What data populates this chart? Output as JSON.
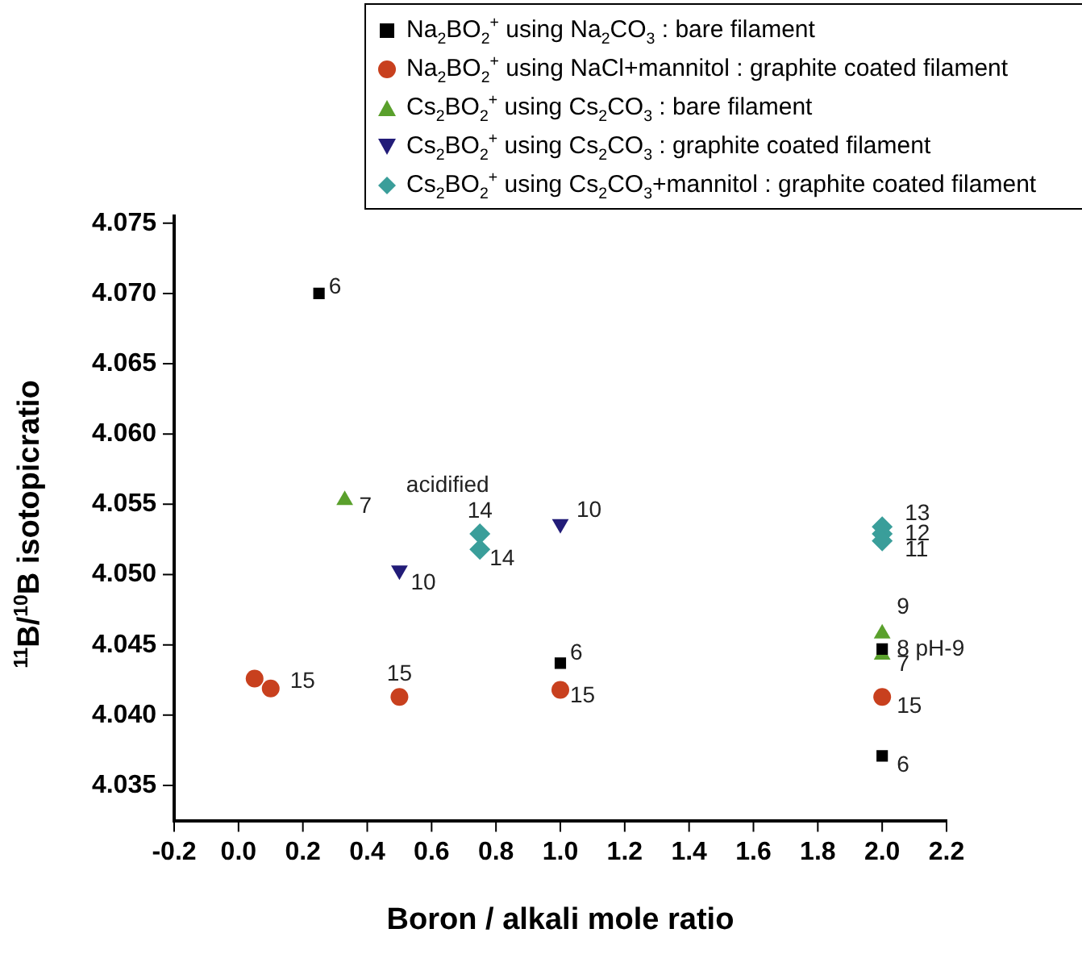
{
  "chart_data": {
    "type": "scatter",
    "xlabel": "Boron / alkali mole ratio",
    "ylabel": "$^{11}$B/$^{10}$B isotopicratio",
    "xlim": [
      -0.2,
      2.2
    ],
    "ylim": [
      4.0325,
      4.0755
    ],
    "xticks": [
      -0.2,
      {
        "value": 0,
        "label": "0.0"
      },
      0.2,
      0.4,
      0.6,
      0.8,
      {
        "value": 1,
        "label": "1.0"
      },
      1.2,
      1.4,
      1.6,
      1.8,
      {
        "value": 2,
        "label": "2.0"
      },
      2.2
    ],
    "yticks": [
      4.035,
      {
        "value": 4.04,
        "label": "4.040"
      },
      4.045,
      {
        "value": 4.05,
        "label": "4.050"
      },
      4.055,
      {
        "value": 4.06,
        "label": "4.060"
      },
      4.065,
      {
        "value": 4.07,
        "label": "4.070"
      },
      4.075
    ],
    "grid": false,
    "legend": "top right",
    "series": [
      {
        "name": "Na$_{2}$BO$_{2}$$^{+}$ using Na$_{2}$CO$_{3}$ : bare filament",
        "color": "#000000",
        "marker": "square",
        "x": [
          0.25,
          1.0,
          2.0,
          2.0
        ],
        "values": [
          4.07,
          4.0437,
          4.0447,
          4.0371
        ]
      },
      {
        "name": "Na$_{2}$BO$_{2}$$^{+}$ using NaCl+mannitol : graphite coated filament",
        "color": "#c8401e",
        "marker": "circle",
        "x": [
          0.05,
          0.1,
          0.5,
          1.0,
          2.0
        ],
        "values": [
          4.0426,
          4.0419,
          4.0413,
          4.0418,
          4.0413
        ]
      },
      {
        "name": "Cs$_{2}$BO$_{2}$$^{+}$ using Cs$_{2}$CO$_{3}$ : bare filament",
        "color": "#5aa02c",
        "marker": "triangle",
        "x": [
          0.33,
          2.0,
          2.0
        ],
        "values": [
          4.0553,
          4.0458,
          4.0443
        ]
      },
      {
        "name": "Cs$_{2}$BO$_{2}$$^{+}$ using Cs$_{2}$CO$_{3}$ : graphite coated filament",
        "color": "#221c78",
        "marker": "triangle-down",
        "x": [
          0.5,
          1.0
        ],
        "values": [
          4.0503,
          4.0536
        ]
      },
      {
        "name": "Cs$_{2}$BO$_{2}$$^{+}$ using Cs$_{2}$CO$_{3}$+mannitol : graphite coated filament",
        "color": "#3a9e9a",
        "marker": "diamond",
        "x": [
          0.75,
          0.75,
          2.0,
          2.0,
          2.0
        ],
        "values": [
          4.0529,
          4.0518,
          4.0534,
          4.0529,
          4.0524
        ]
      }
    ],
    "annotations": [
      {
        "text": "6",
        "x": 0.25,
        "y": 4.07
      },
      {
        "text": "6",
        "x": 1.0,
        "y": 4.0437
      },
      {
        "text": "8 pH-9",
        "x": 2.0,
        "y": 4.0447
      },
      {
        "text": "6",
        "x": 2.0,
        "y": 4.0371
      },
      {
        "text": "15",
        "x": 0.1,
        "y": 4.0419
      },
      {
        "text": "15",
        "x": 0.5,
        "y": 4.0413
      },
      {
        "text": "15",
        "x": 1.0,
        "y": 4.0418
      },
      {
        "text": "15",
        "x": 2.0,
        "y": 4.0413
      },
      {
        "text": "7",
        "x": 0.33,
        "y": 4.0553
      },
      {
        "text": "9",
        "x": 2.0,
        "y": 4.0458
      },
      {
        "text": "7",
        "x": 2.0,
        "y": 4.0443
      },
      {
        "text": "10",
        "x": 0.5,
        "y": 4.0503
      },
      {
        "text": "10",
        "x": 1.0,
        "y": 4.0536
      },
      {
        "text": "acidified",
        "x": 0.75,
        "y": 4.0529
      },
      {
        "text": "14",
        "x": 0.75,
        "y": 4.0529
      },
      {
        "text": "14",
        "x": 0.75,
        "y": 4.0518
      },
      {
        "text": "13",
        "x": 2.0,
        "y": 4.0534
      },
      {
        "text": "12",
        "x": 2.0,
        "y": 4.0529
      },
      {
        "text": "11",
        "x": 2.0,
        "y": 4.0524
      }
    ]
  }
}
